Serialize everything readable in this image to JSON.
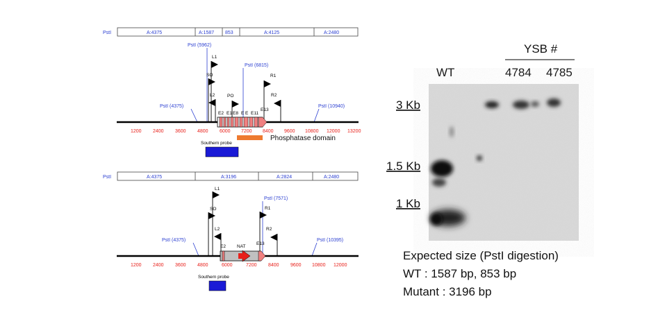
{
  "map1": {
    "restriction_prefix": "PstI",
    "segments": [
      "A:4375",
      "A:1587",
      "853",
      "A:4125",
      "A:2480"
    ],
    "sites": [
      "PstI (5962)",
      "PstI (6815)",
      "PstI (4375)",
      "PstI (10940)"
    ],
    "primers": [
      "L1",
      "SO",
      "L2",
      "PO",
      "R1",
      "R2"
    ],
    "exons": [
      "E2",
      "E1",
      "E8",
      "E",
      "E",
      "E11",
      "E13"
    ],
    "ticks": [
      "1200",
      "2400",
      "3600",
      "4800",
      "6000",
      "7200",
      "8400",
      "9600",
      "10800",
      "12000",
      "13200"
    ],
    "domain_label": "Phosphatase domain",
    "probe_label": "Southern probe"
  },
  "map2": {
    "restriction_prefix": "PstI",
    "segments": [
      "A:4375",
      "A:3196",
      "A:2824",
      "A:2480"
    ],
    "sites": [
      "PstI (7571)",
      "PstI (4375)",
      "PstI (10395)"
    ],
    "primers": [
      "L1",
      "SO",
      "L2",
      "R1",
      "R2"
    ],
    "exons": [
      "E2",
      "NAT",
      "E13"
    ],
    "ticks": [
      "1200",
      "2400",
      "3600",
      "4800",
      "6000",
      "7200",
      "8400",
      "9600",
      "10800",
      "12000"
    ],
    "probe_label": "Southern probe"
  },
  "blot": {
    "header": "YSB #",
    "lanes": [
      "WT",
      "4784",
      "4785"
    ],
    "size_markers": [
      "3 Kb",
      "1.5 Kb",
      "1 Kb"
    ]
  },
  "expected": {
    "title": "Expected size (PstI digestion)",
    "wt": "WT : 1587 bp, 853 bp",
    "mutant": "Mutant : 3196 bp"
  },
  "colors": {
    "site_blue": "#2b3fd1",
    "tick_red": "#e8201a",
    "exon_pink": "#f08080",
    "nat_red": "#e8201a",
    "domain_orange": "#ee7a30",
    "probe_blue": "#1a1ad6"
  }
}
